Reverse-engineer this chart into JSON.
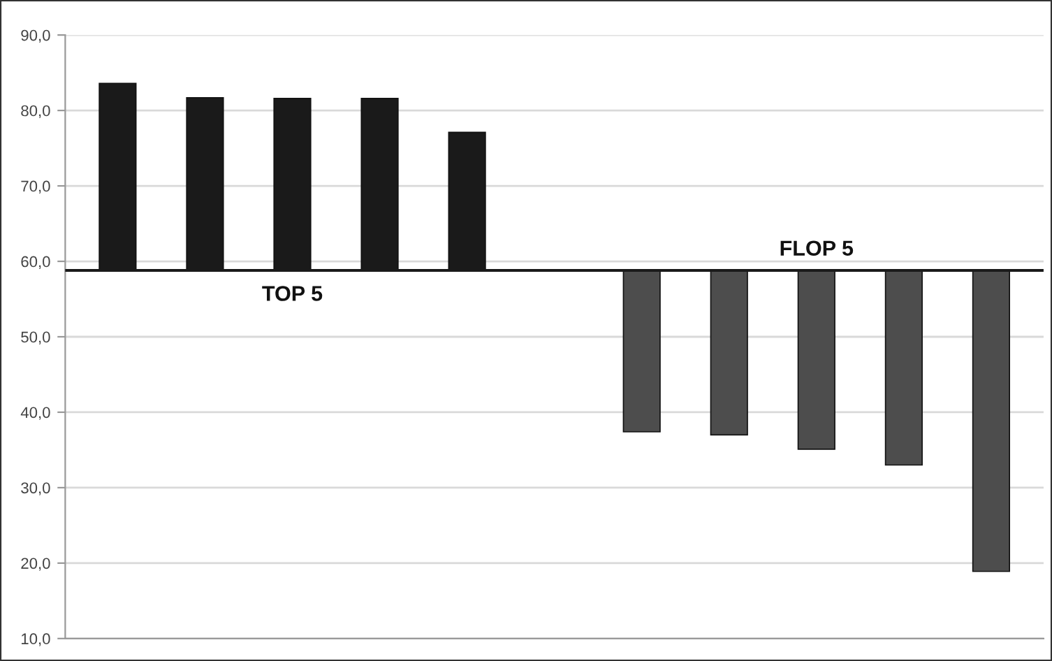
{
  "chart_data": {
    "type": "bar",
    "categories": [
      null,
      null,
      null,
      null,
      null,
      null,
      null,
      null,
      null,
      null,
      null
    ],
    "series": [
      {
        "color": "#1a1a1a",
        "values": [
          24.8,
          22.9,
          22.8,
          22.8,
          18.3,
          null,
          null,
          null,
          null,
          null,
          null
        ],
        "base": [
          58.8,
          58.8,
          58.8,
          58.8,
          58.8,
          null,
          null,
          null,
          null,
          null,
          null
        ]
      },
      {
        "color": "#4d4d4d",
        "values": [
          null,
          null,
          null,
          null,
          null,
          null,
          -21.4,
          -21.8,
          -23.7,
          -25.8,
          -39.9
        ],
        "base": [
          null,
          null,
          null,
          null,
          null,
          null,
          58.8,
          58.8,
          58.8,
          58.8,
          58.8
        ]
      }
    ],
    "ylim": [
      10,
      90
    ],
    "yticks": [
      {
        "value": 10,
        "label": "10,0"
      },
      {
        "value": 20,
        "label": "20,0"
      },
      {
        "value": 30,
        "label": "30,0"
      },
      {
        "value": 40,
        "label": "40,0"
      },
      {
        "value": 50,
        "label": "50,0"
      },
      {
        "value": 60,
        "label": "60,0"
      },
      {
        "value": 70,
        "label": "70,0"
      },
      {
        "value": 80,
        "label": "80,0"
      },
      {
        "value": 90,
        "label": "90,0"
      }
    ],
    "grid": "y",
    "ref_lines": [
      {
        "axis": "y",
        "value": 58.8,
        "color": "#1a1a1a"
      }
    ],
    "annotations": [
      "TOP 5",
      "FLOP 5"
    ]
  }
}
